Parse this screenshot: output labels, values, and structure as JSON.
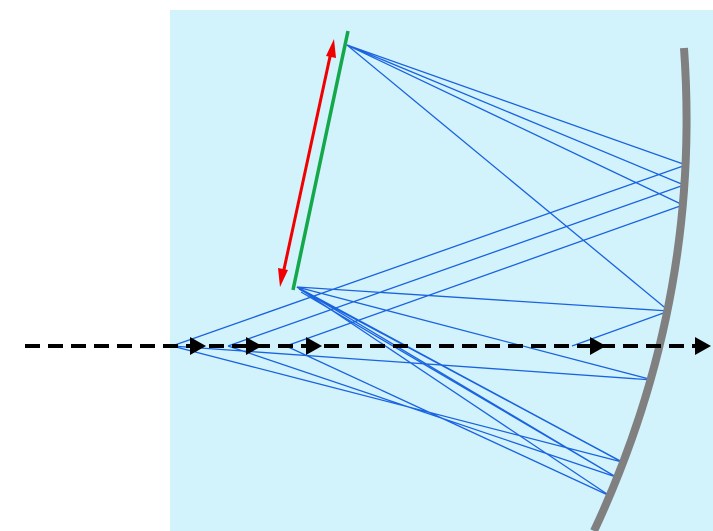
{
  "diagram": {
    "colors": {
      "background_panel": "#d3f3fc",
      "mirror": "#808080",
      "grating": "#13a84a",
      "rotation_arrow": "#f00000",
      "rays": "#1a63e0",
      "axis_arrows": "#000000"
    },
    "elements": [
      "curved-mirror",
      "grating",
      "rotation-double-arrow",
      "ray-bundle",
      "dashed-optical-axis-with-arrowheads"
    ]
  }
}
